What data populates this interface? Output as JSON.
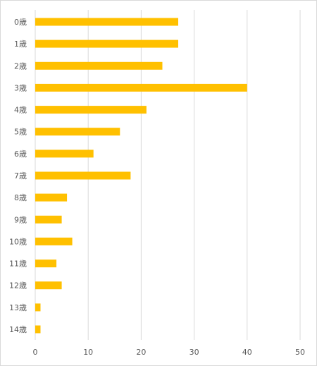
{
  "chart_data": {
    "type": "bar",
    "orientation": "horizontal",
    "categories": [
      "0歳",
      "1歳",
      "2歳",
      "3歳",
      "4歳",
      "5歳",
      "6歳",
      "7歳",
      "8歳",
      "9歳",
      "10歳",
      "11歳",
      "12歳",
      "13歳",
      "14歳"
    ],
    "values": [
      27,
      27,
      24,
      40,
      21,
      16,
      11,
      18,
      6,
      5,
      7,
      4,
      5,
      1,
      1
    ],
    "xlim": [
      0,
      50
    ],
    "xticks": [
      0,
      10,
      20,
      30,
      40,
      50
    ],
    "grid": "vertical",
    "legend": "none",
    "bar_color": "#FFC000",
    "grid_color": "#d9d9d9",
    "title": "",
    "xlabel": "",
    "ylabel": ""
  }
}
